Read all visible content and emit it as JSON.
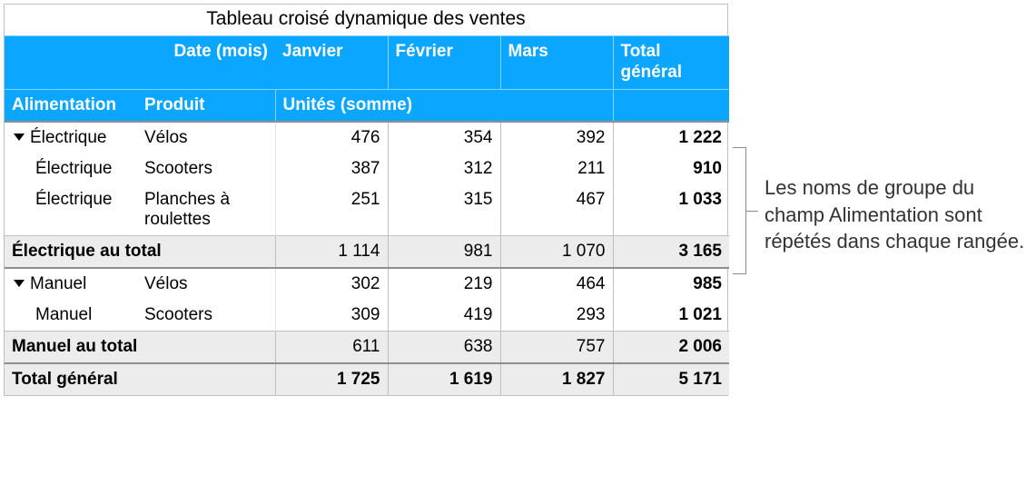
{
  "colors": {
    "header_bg": "#0aa6ff",
    "header_fg": "#ffffff",
    "header_grid": "#7fd3ff",
    "body_grid": "#bfbfbf",
    "subtotal_bg": "#ececec",
    "annotation_line": "#8a8a8a"
  },
  "title": "Tableau croisé dynamique des ventes",
  "header1": {
    "date_label": "Date (mois)",
    "months": [
      "Janvier",
      "Février",
      "Mars"
    ],
    "grand_total": "Total général"
  },
  "header2": {
    "alimentation": "Alimentation",
    "produit": "Produit",
    "units": "Unités (somme)"
  },
  "groups": [
    {
      "name": "Électrique",
      "rows": [
        {
          "product": "Vélos",
          "values": [
            "476",
            "354",
            "392"
          ],
          "total": "1 222"
        },
        {
          "product": "Scooters",
          "values": [
            "387",
            "312",
            "211"
          ],
          "total": "910"
        },
        {
          "product": "Planches à roulettes",
          "values": [
            "251",
            "315",
            "467"
          ],
          "total": "1 033"
        }
      ],
      "subtotal_label": "Électrique au total",
      "subtotal_values": [
        "1 114",
        "981",
        "1 070"
      ],
      "subtotal_total": "3 165"
    },
    {
      "name": "Manuel",
      "rows": [
        {
          "product": "Vélos",
          "values": [
            "302",
            "219",
            "464"
          ],
          "total": "985"
        },
        {
          "product": "Scooters",
          "values": [
            "309",
            "419",
            "293"
          ],
          "total": "1 021"
        }
      ],
      "subtotal_label": "Manuel au total",
      "subtotal_values": [
        "611",
        "638",
        "757"
      ],
      "subtotal_total": "2 006"
    }
  ],
  "grand_total": {
    "label": "Total général",
    "values": [
      "1 725",
      "1 619",
      "1 827"
    ],
    "total": "5 171"
  },
  "annotation": "Les noms de groupe du champ Alimentation sont répétés dans chaque rangée."
}
